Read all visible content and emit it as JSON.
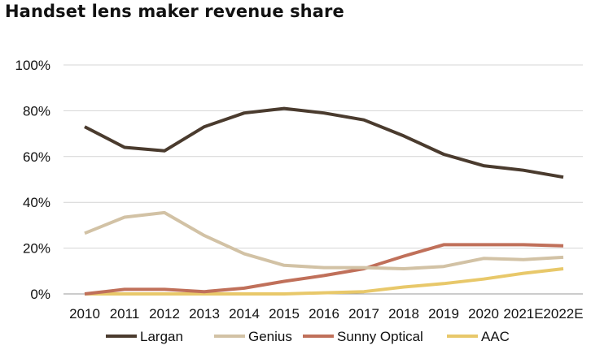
{
  "chart_data": {
    "type": "line",
    "title": "Handset lens maker revenue share",
    "xlabel": "",
    "ylabel": "",
    "categories": [
      "2010",
      "2011",
      "2012",
      "2013",
      "2014",
      "2015",
      "2016",
      "2017",
      "2018",
      "2019",
      "2020",
      "2021E",
      "2022E"
    ],
    "y_ticks": [
      "0%",
      "20%",
      "40%",
      "60%",
      "80%",
      "100%"
    ],
    "ylim": [
      0,
      100
    ],
    "grid": "horizontal",
    "legend_position": "bottom",
    "series": [
      {
        "name": "Largan",
        "color": "#4a3b2e",
        "values": [
          73,
          64,
          62.5,
          73,
          79,
          81,
          79,
          76,
          69,
          61,
          56,
          54,
          51
        ]
      },
      {
        "name": "Genius",
        "color": "#d2c2a5",
        "values": [
          26.5,
          33.5,
          35.5,
          25.5,
          17.5,
          12.5,
          11.5,
          11.5,
          11,
          12,
          15.5,
          15,
          16
        ]
      },
      {
        "name": "Sunny Optical",
        "color": "#c0705a",
        "values": [
          0,
          2,
          2,
          1,
          2.5,
          5.5,
          8,
          11,
          16.5,
          21.5,
          21.5,
          21.5,
          21
        ]
      },
      {
        "name": "AAC",
        "color": "#e8c86a",
        "values": [
          0,
          0,
          0,
          0,
          0,
          0,
          0.5,
          1,
          3,
          4.5,
          6.5,
          9,
          11
        ]
      }
    ]
  }
}
